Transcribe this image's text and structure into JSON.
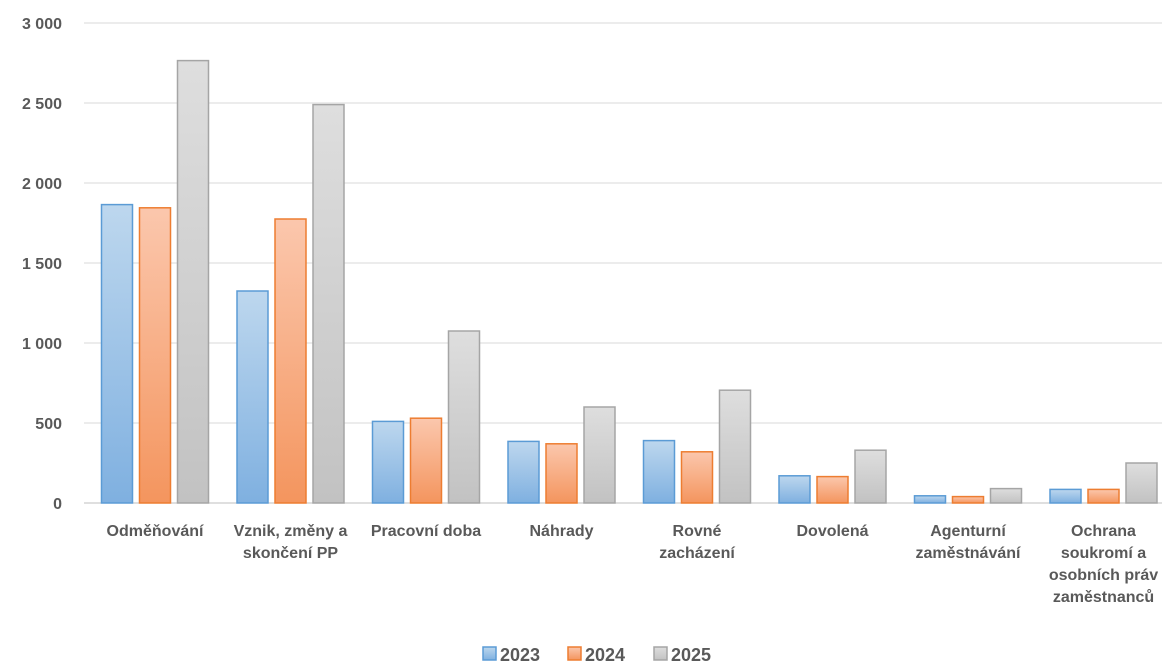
{
  "chart_data": {
    "type": "bar",
    "categories": [
      [
        "Odměňování"
      ],
      [
        "Vznik, změny a",
        "skončení PP"
      ],
      [
        "Pracovní doba"
      ],
      [
        "Náhrady"
      ],
      [
        "Rovné",
        "zacházení"
      ],
      [
        "Dovolená"
      ],
      [
        "Agenturní",
        "zaměstnávání"
      ],
      [
        "Ochrana",
        "soukromí a",
        "osobních práv",
        "zaměstnanců"
      ]
    ],
    "series": [
      {
        "name": "2023",
        "values": [
          1865,
          1325,
          510,
          385,
          390,
          170,
          45,
          85
        ],
        "color": "#5b9bd5"
      },
      {
        "name": "2024",
        "values": [
          1845,
          1775,
          530,
          370,
          320,
          165,
          40,
          85
        ],
        "color": "#ed7d31"
      },
      {
        "name": "2025",
        "values": [
          2765,
          2490,
          1075,
          600,
          705,
          330,
          90,
          250
        ],
        "color": "#a5a5a5"
      }
    ],
    "yticks": [
      "0",
      "500",
      "1 000",
      "1 500",
      "2 000",
      "2 500",
      "3 000"
    ],
    "ylim": [
      0,
      3000
    ],
    "grid": true,
    "legend": "bottom",
    "title": "",
    "xlabel": "",
    "ylabel": ""
  }
}
